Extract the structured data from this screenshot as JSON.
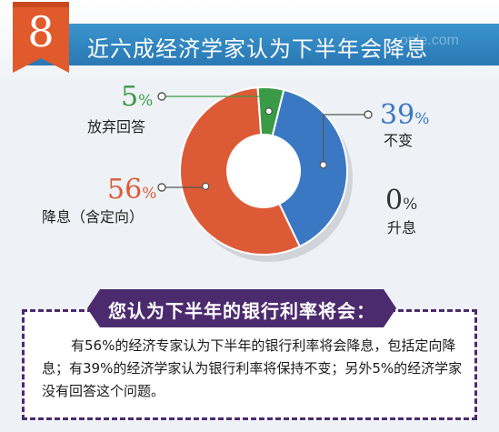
{
  "header": {
    "number": "8",
    "title": "近六成经济学家认为下半年会降息",
    "watermark": "ople.com"
  },
  "colors": {
    "blue": "#3b78c3",
    "green": "#3a9a45",
    "orange": "#dd5a37",
    "purple": "#4b2b6e",
    "title_bar": "#2f86c3",
    "badge": "#e05a2c"
  },
  "chart_data": {
    "type": "pie",
    "style": "donut",
    "slices": [
      {
        "label": "不变",
        "value": 39,
        "display": "39",
        "color": "#3b78c3"
      },
      {
        "label": "升息",
        "value": 0,
        "display": "0",
        "color": "#7f7f7f"
      },
      {
        "label": "降息（含定向）",
        "value": 56,
        "display": "56",
        "color": "#dd5a37"
      },
      {
        "label": "放弃回答",
        "value": 5,
        "display": "5",
        "color": "#3a9a45"
      }
    ],
    "unit": "%"
  },
  "note": {
    "header": "您认为下半年的银行利率将会：",
    "body": "有56%的经济专家认为下半年的银行利率将会降息，包括定向降息；有39%的经济学家认为银行利率将保持不变；另外5%的经济学家没有回答这个问题。"
  }
}
